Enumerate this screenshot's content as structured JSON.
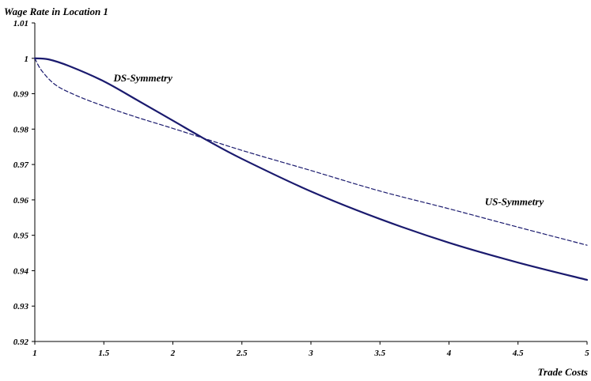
{
  "chart_data": {
    "type": "line",
    "title": "",
    "ylabel": "Wage Rate in Location 1",
    "xlabel": "Trade Costs",
    "xlim": [
      1,
      5
    ],
    "ylim": [
      0.92,
      1.01
    ],
    "x_ticks": [
      "1",
      "1.5",
      "2",
      "2.5",
      "3",
      "3.5",
      "4",
      "4.5",
      "5"
    ],
    "y_ticks": [
      "0.92",
      "0.93",
      "0.94",
      "0.95",
      "0.96",
      "0.97",
      "0.98",
      "0.99",
      "1",
      "1.01"
    ],
    "grid": false,
    "series": [
      {
        "name": "DS-Symmetry",
        "style": "solid",
        "color": "#1a1a6e",
        "x": [
          1,
          1.1,
          1.25,
          1.5,
          1.75,
          2,
          2.25,
          2.5,
          3,
          3.5,
          4,
          4.5,
          5
        ],
        "y": [
          1.0,
          0.9997,
          0.9978,
          0.9935,
          0.988,
          0.9824,
          0.9768,
          0.9716,
          0.9624,
          0.9546,
          0.9479,
          0.9423,
          0.9374
        ]
      },
      {
        "name": "US-Symmetry",
        "style": "dashed",
        "color": "#1a1a6e",
        "x": [
          1,
          1.05,
          1.15,
          1.3,
          1.5,
          1.75,
          2,
          2.5,
          3,
          3.5,
          4,
          4.5,
          5
        ],
        "y": [
          1.0,
          0.9965,
          0.9925,
          0.9895,
          0.9865,
          0.9832,
          0.9802,
          0.974,
          0.9683,
          0.9625,
          0.9575,
          0.9523,
          0.9472
        ]
      }
    ],
    "annotations": [
      {
        "text": "DS-Symmetry",
        "x": 1.57,
        "y": 0.9935
      },
      {
        "text": "US-Symmetry",
        "x": 4.26,
        "y": 0.9585
      }
    ]
  }
}
